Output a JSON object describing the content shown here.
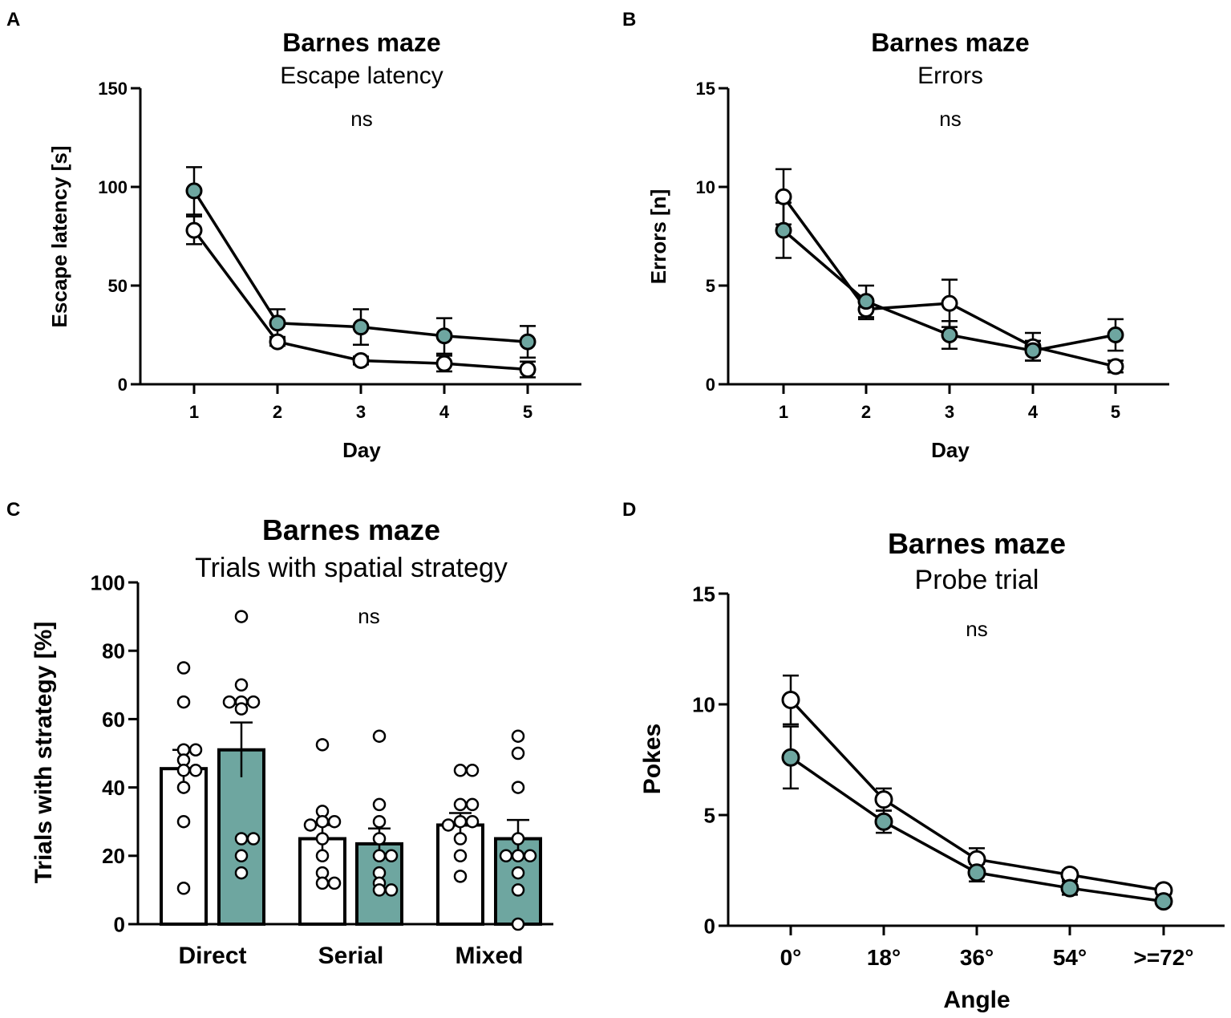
{
  "chart_data": [
    {
      "panel": "A",
      "type": "line",
      "title": "Barnes maze",
      "subtitle": "Escape latency",
      "annotation": "ns",
      "xlabel": "Day",
      "ylabel": "Escape latency [s]",
      "ylim": [
        0,
        150
      ],
      "yticks": [
        0,
        50,
        100,
        150
      ],
      "categories": [
        "1",
        "2",
        "3",
        "4",
        "5"
      ],
      "series": [
        {
          "name": "white",
          "fill": "#ffffff",
          "values": [
            78,
            21.5,
            12,
            10.5,
            7.5
          ],
          "err": [
            7,
            2,
            2,
            4,
            4
          ]
        },
        {
          "name": "teal",
          "fill": "#6ea6a0",
          "values": [
            98,
            31,
            29,
            24.5,
            21.5
          ],
          "err": [
            12,
            7,
            9,
            9,
            8
          ]
        }
      ]
    },
    {
      "panel": "B",
      "type": "line",
      "title": "Barnes maze",
      "subtitle": "Errors",
      "annotation": "ns",
      "xlabel": "Day",
      "ylabel": "Errors [n]",
      "ylim": [
        0,
        15
      ],
      "yticks": [
        0,
        5,
        10,
        15
      ],
      "categories": [
        "1",
        "2",
        "3",
        "4",
        "5"
      ],
      "series": [
        {
          "name": "white",
          "fill": "#ffffff",
          "values": [
            9.5,
            3.8,
            4.1,
            1.9,
            0.9
          ],
          "err": [
            1.4,
            0.5,
            1.2,
            0.7,
            0.3
          ]
        },
        {
          "name": "teal",
          "fill": "#6ea6a0",
          "values": [
            7.8,
            4.2,
            2.5,
            1.7,
            2.5
          ],
          "err": [
            1.4,
            0.8,
            0.7,
            0.5,
            0.8
          ]
        }
      ]
    },
    {
      "panel": "C",
      "type": "bar",
      "title": "Barnes maze",
      "subtitle": "Trials with spatial strategy",
      "annotation": "ns",
      "xlabel": "",
      "ylabel": "Trials with strategy [%]",
      "ylim": [
        0,
        100
      ],
      "yticks": [
        0,
        20,
        40,
        60,
        80,
        100
      ],
      "categories": [
        "Direct",
        "Serial",
        "Mixed"
      ],
      "series": [
        {
          "name": "white",
          "fill": "#ffffff",
          "values": [
            45.5,
            25,
            29
          ],
          "err": [
            5.5,
            4,
            3.5
          ],
          "points": [
            [
              75,
              65,
              51,
              51,
              48,
              45,
              45,
              40,
              30,
              10.5
            ],
            [
              52.5,
              33,
              30,
              30,
              29,
              25,
              20,
              15,
              12,
              12
            ],
            [
              45,
              45,
              35,
              35,
              30,
              30,
              29,
              25,
              20,
              14
            ]
          ]
        },
        {
          "name": "teal",
          "fill": "#6ea6a0",
          "values": [
            51,
            23.5,
            25
          ],
          "err": [
            8,
            4.5,
            5.5
          ],
          "points": [
            [
              90,
              70,
              65,
              65,
              65,
              63,
              25,
              25,
              20,
              15
            ],
            [
              55,
              35,
              30,
              25,
              20,
              20,
              15,
              12,
              10,
              10
            ],
            [
              55,
              50,
              40,
              25,
              20,
              20,
              20,
              15,
              10,
              0
            ]
          ]
        }
      ]
    },
    {
      "panel": "D",
      "type": "line",
      "title": "Barnes maze",
      "subtitle": "Probe trial",
      "annotation": "ns",
      "xlabel": "Angle",
      "ylabel": "Pokes",
      "ylim": [
        0,
        15
      ],
      "yticks": [
        0,
        5,
        10,
        15
      ],
      "categories": [
        "0°",
        "18°",
        "36°",
        "54°",
        ">=72°"
      ],
      "series": [
        {
          "name": "white",
          "fill": "#ffffff",
          "values": [
            10.2,
            5.7,
            3.0,
            2.3,
            1.6
          ],
          "err": [
            1.1,
            0.5,
            0.5,
            0.2,
            0.1
          ]
        },
        {
          "name": "teal",
          "fill": "#6ea6a0",
          "values": [
            7.6,
            4.7,
            2.4,
            1.7,
            1.1
          ],
          "err": [
            1.4,
            0.5,
            0.4,
            0.3,
            0.1
          ]
        }
      ]
    }
  ]
}
